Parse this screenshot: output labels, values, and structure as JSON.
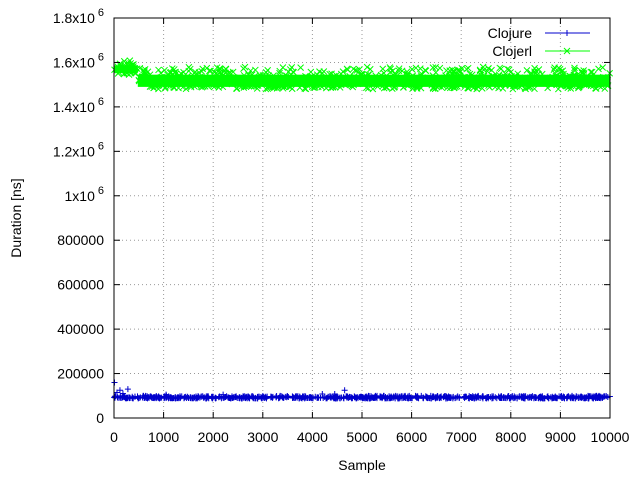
{
  "chart_data": {
    "type": "scatter",
    "title": "",
    "xlabel": "Sample",
    "ylabel": "Duration [ns]",
    "xlim": [
      0,
      10000
    ],
    "ylim": [
      0,
      1800000
    ],
    "grid": true,
    "legend_position": "top-right",
    "x_ticks": [
      {
        "value": 0,
        "label": "0"
      },
      {
        "value": 1000,
        "label": "1000"
      },
      {
        "value": 2000,
        "label": "2000"
      },
      {
        "value": 3000,
        "label": "3000"
      },
      {
        "value": 4000,
        "label": "4000"
      },
      {
        "value": 5000,
        "label": "5000"
      },
      {
        "value": 6000,
        "label": "6000"
      },
      {
        "value": 7000,
        "label": "7000"
      },
      {
        "value": 8000,
        "label": "8000"
      },
      {
        "value": 9000,
        "label": "9000"
      },
      {
        "value": 10000,
        "label": "10000"
      }
    ],
    "y_ticks": [
      {
        "value": 0,
        "label": "0",
        "exp": ""
      },
      {
        "value": 200000,
        "label": "200000",
        "exp": ""
      },
      {
        "value": 400000,
        "label": "400000",
        "exp": ""
      },
      {
        "value": 600000,
        "label": "600000",
        "exp": ""
      },
      {
        "value": 800000,
        "label": "800000",
        "exp": ""
      },
      {
        "value": 1000000,
        "label": "1x10",
        "exp": "6"
      },
      {
        "value": 1200000,
        "label": "1.2x10",
        "exp": "6"
      },
      {
        "value": 1400000,
        "label": "1.4x10",
        "exp": "6"
      },
      {
        "value": 1600000,
        "label": "1.6x10",
        "exp": "6"
      },
      {
        "value": 1800000,
        "label": "1.8x10",
        "exp": "6"
      }
    ],
    "series": [
      {
        "name": "Clojure",
        "color": "#0000cc",
        "marker": "plus",
        "band": [
          {
            "x0": 0,
            "x1": 10000,
            "y_min": 88000,
            "y_max": 100000
          }
        ],
        "points": [
          {
            "x": 10,
            "y": 160000
          },
          {
            "x": 60,
            "y": 115000
          },
          {
            "x": 120,
            "y": 125000
          },
          {
            "x": 180,
            "y": 110000
          },
          {
            "x": 280,
            "y": 130000
          },
          {
            "x": 1050,
            "y": 105000
          },
          {
            "x": 2200,
            "y": 105000
          },
          {
            "x": 4200,
            "y": 108000
          },
          {
            "x": 4450,
            "y": 108000
          },
          {
            "x": 4650,
            "y": 125000
          }
        ]
      },
      {
        "name": "Clojerl",
        "color": "#00ff00",
        "marker": "cross",
        "band": [
          {
            "x0": 0,
            "x1": 480,
            "y_min": 1545000,
            "y_max": 1610000
          },
          {
            "x0": 480,
            "x1": 10000,
            "y_min": 1480000,
            "y_max": 1580000
          }
        ],
        "points": []
      }
    ]
  }
}
